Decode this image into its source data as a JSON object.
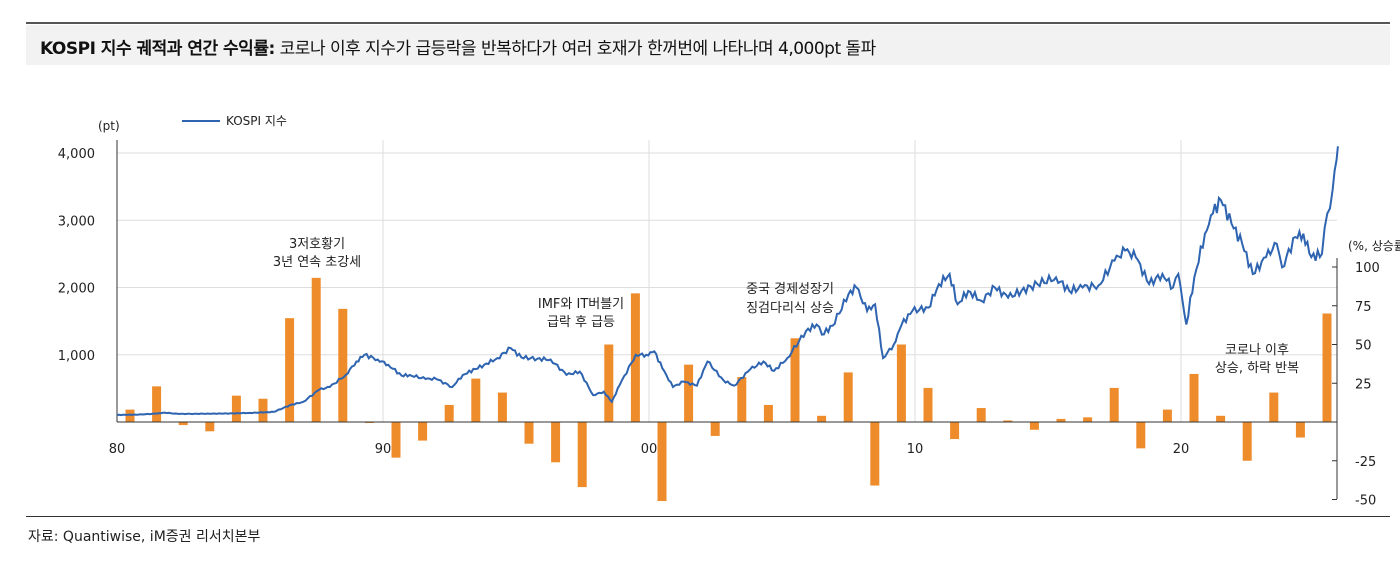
{
  "title": {
    "bold": "KOSPI 지수 궤적과 연간 수익률:",
    "rest": " 코로나 이후 지수가 급등락을 반복하다가 여러 호재가 한꺼번에 나타나며 4,000pt 돌파"
  },
  "source": "자료: Quantiwise, iM증권 리서치본부",
  "chart_data": {
    "type": "bar+line",
    "legend": {
      "label": "KOSPI 지수",
      "placement": "top-left"
    },
    "colors": {
      "line": "#2e64b0",
      "bar": "#ee8c2c",
      "grid": "#dddddd"
    },
    "left_axis": {
      "label": "(pt)",
      "ylim": [
        0,
        4000
      ],
      "ticks": [
        1000,
        2000,
        3000,
        4000
      ],
      "tick_labels": [
        "1,000",
        "2,000",
        "3,000",
        "4,000"
      ]
    },
    "right_axis": {
      "label": "(%, 상승률)",
      "ylim": [
        -50,
        100
      ],
      "ticks": [
        -50,
        -25,
        25,
        50,
        75,
        100
      ],
      "tick_labels": [
        "-50",
        "-25",
        "25",
        "50",
        "75",
        "100"
      ]
    },
    "x_axis": {
      "xlim": [
        1980,
        2025.9
      ],
      "ticks": [
        1980,
        1990,
        2000,
        2010,
        2020
      ],
      "tick_labels": [
        "80",
        "90",
        "00",
        "10",
        "20"
      ]
    },
    "bars": {
      "name": "연간 수익률",
      "years": [
        1980,
        1981,
        1982,
        1983,
        1984,
        1985,
        1986,
        1987,
        1988,
        1989,
        1990,
        1991,
        1992,
        1993,
        1994,
        1995,
        1996,
        1997,
        1998,
        1999,
        2000,
        2001,
        2002,
        2003,
        2004,
        2005,
        2006,
        2007,
        2008,
        2009,
        2010,
        2011,
        2012,
        2013,
        2014,
        2015,
        2016,
        2017,
        2018,
        2019,
        2020,
        2021,
        2022,
        2023,
        2024,
        2025
      ],
      "values": [
        8,
        23,
        -2,
        -6,
        17,
        15,
        67,
        93,
        73,
        0,
        -23,
        -12,
        11,
        28,
        19,
        -14,
        -26,
        -42,
        50,
        83,
        -51,
        37,
        -9,
        29,
        11,
        54,
        4,
        32,
        -41,
        50,
        22,
        -11,
        9,
        1,
        -5,
        2,
        3,
        22,
        -17,
        8,
        31,
        4,
        -25,
        19,
        -10,
        70
      ]
    },
    "line": {
      "name": "KOSPI 지수",
      "points": [
        [
          1980,
          105
        ],
        [
          1980.8,
          110
        ],
        [
          1981.5,
          125
        ],
        [
          1981.8,
          140
        ],
        [
          1982.3,
          120
        ],
        [
          1983,
          122
        ],
        [
          1984,
          125
        ],
        [
          1985,
          135
        ],
        [
          1985.9,
          150
        ],
        [
          1986.5,
          250
        ],
        [
          1987,
          300
        ],
        [
          1987.6,
          480
        ],
        [
          1988,
          520
        ],
        [
          1988.6,
          700
        ],
        [
          1989,
          900
        ],
        [
          1989.3,
          1000
        ],
        [
          1989.8,
          930
        ],
        [
          1990.2,
          850
        ],
        [
          1990.7,
          690
        ],
        [
          1991,
          700
        ],
        [
          1991.6,
          640
        ],
        [
          1992,
          640
        ],
        [
          1992.6,
          520
        ],
        [
          1993,
          700
        ],
        [
          1993.8,
          850
        ],
        [
          1994.3,
          950
        ],
        [
          1994.8,
          1100
        ],
        [
          1995.2,
          960
        ],
        [
          1995.8,
          940
        ],
        [
          1996.3,
          930
        ],
        [
          1996.9,
          700
        ],
        [
          1997.4,
          750
        ],
        [
          1997.9,
          400
        ],
        [
          1998.3,
          450
        ],
        [
          1998.6,
          300
        ],
        [
          1998.9,
          550
        ],
        [
          1999.5,
          1000
        ],
        [
          1999.9,
          1000
        ],
        [
          2000.2,
          1050
        ],
        [
          2000.5,
          800
        ],
        [
          2000.9,
          520
        ],
        [
          2001.3,
          600
        ],
        [
          2001.8,
          540
        ],
        [
          2002.2,
          900
        ],
        [
          2002.8,
          620
        ],
        [
          2003.2,
          540
        ],
        [
          2003.8,
          780
        ],
        [
          2004.3,
          900
        ],
        [
          2004.7,
          760
        ],
        [
          2005.2,
          950
        ],
        [
          2005.9,
          1350
        ],
        [
          2006.3,
          1450
        ],
        [
          2006.5,
          1300
        ],
        [
          2006.9,
          1430
        ],
        [
          2007.5,
          1900
        ],
        [
          2007.8,
          2000
        ],
        [
          2008.2,
          1650
        ],
        [
          2008.5,
          1750
        ],
        [
          2008.8,
          950
        ],
        [
          2009.2,
          1150
        ],
        [
          2009.5,
          1450
        ],
        [
          2009.9,
          1650
        ],
        [
          2010.5,
          1700
        ],
        [
          2010.9,
          2050
        ],
        [
          2011.3,
          2200
        ],
        [
          2011.6,
          1750
        ],
        [
          2012,
          1950
        ],
        [
          2012.5,
          1800
        ],
        [
          2013,
          2000
        ],
        [
          2013.5,
          1850
        ],
        [
          2014,
          1950
        ],
        [
          2014.6,
          2050
        ],
        [
          2015.3,
          2150
        ],
        [
          2015.8,
          1950
        ],
        [
          2016.3,
          2000
        ],
        [
          2016.9,
          2030
        ],
        [
          2017.5,
          2400
        ],
        [
          2017.9,
          2550
        ],
        [
          2018.3,
          2450
        ],
        [
          2018.8,
          2050
        ],
        [
          2019.3,
          2200
        ],
        [
          2019.7,
          2000
        ],
        [
          2019.9,
          2200
        ],
        [
          2020.2,
          1450
        ],
        [
          2020.5,
          2150
        ],
        [
          2020.9,
          2800
        ],
        [
          2021.2,
          3100
        ],
        [
          2021.5,
          3300
        ],
        [
          2021.9,
          2950
        ],
        [
          2022.3,
          2650
        ],
        [
          2022.7,
          2200
        ],
        [
          2023.2,
          2450
        ],
        [
          2023.6,
          2650
        ],
        [
          2023.8,
          2300
        ],
        [
          2024.3,
          2750
        ],
        [
          2024.6,
          2800
        ],
        [
          2024.9,
          2450
        ],
        [
          2025.3,
          2500
        ],
        [
          2025.5,
          3100
        ],
        [
          2025.7,
          3450
        ],
        [
          2025.85,
          3900
        ],
        [
          2025.9,
          4100
        ]
      ]
    },
    "annotations": [
      {
        "lines": [
          "3저호황기",
          "3년 연속 초강세"
        ]
      },
      {
        "lines": [
          "IMF와 IT버블기",
          "급락 후 급등"
        ]
      },
      {
        "lines": [
          "중국 경제성장기",
          "징검다리식 상승"
        ]
      },
      {
        "lines": [
          "코로나 이후",
          "상승, 하락 반복"
        ]
      }
    ]
  }
}
